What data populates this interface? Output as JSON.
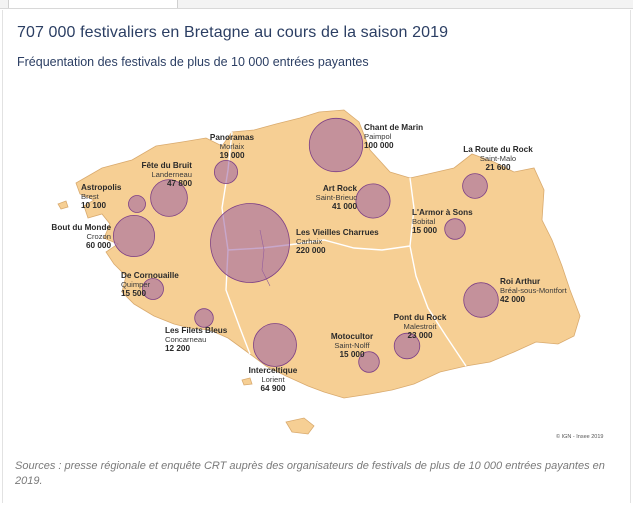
{
  "page": {
    "title": "707 000 festivaliers en Bretagne au cours de la saison 2019",
    "subtitle": "Fréquentation des festivals de plus de 10 000 entrées payantes",
    "source": "Sources : presse régionale et enquête CRT auprès des organisateurs de festivals de plus de 10 000 entrées payantes en 2019.",
    "credit": "© IGN - Insee 2019"
  },
  "colors": {
    "land": "#f6cf94",
    "land_stroke": "#d9aa6e",
    "border": "#ffffff",
    "bubble_fill": "#9b5fa0",
    "bubble_stroke": "#7c3f86",
    "water": "#ffffff",
    "title": "#2b3e63"
  },
  "festivals": [
    {
      "name": "Chant de Marin",
      "town": "Paimpol",
      "attendance": "100 000",
      "value": 100000
    },
    {
      "name": "La Route du Rock",
      "town": "Saint-Malo",
      "attendance": "21 600",
      "value": 21600
    },
    {
      "name": "Panoramas",
      "town": "Morlaix",
      "attendance": "19 000",
      "value": 19000
    },
    {
      "name": "Fête du Bruit",
      "town": "Landerneau",
      "attendance": "47 800",
      "value": 47800
    },
    {
      "name": "Astropolis",
      "town": "Brest",
      "attendance": "10 100",
      "value": 10100
    },
    {
      "name": "Art Rock",
      "town": "Saint-Brieuc",
      "attendance": "41 000",
      "value": 41000
    },
    {
      "name": "Bout du Monde",
      "town": "Crozon",
      "attendance": "60 000",
      "value": 60000
    },
    {
      "name": "Les Vieilles Charrues",
      "town": "Carhaix",
      "attendance": "220 000",
      "value": 220000
    },
    {
      "name": "L'Armor à Sons",
      "town": "Bobital",
      "attendance": "15 000",
      "value": 15000
    },
    {
      "name": "De Cornouaille",
      "town": "Quimper",
      "attendance": "15 500",
      "value": 15500
    },
    {
      "name": "Roi Arthur",
      "town": "Bréal-sous-Montfort",
      "attendance": "42 000",
      "value": 42000
    },
    {
      "name": "Les Filets Bleus",
      "town": "Concarneau",
      "attendance": "12 200",
      "value": 12200
    },
    {
      "name": "Pont du Rock",
      "town": "Malestroit",
      "attendance": "23 000",
      "value": 23000
    },
    {
      "name": "Motocultor",
      "town": "Saint-Nolff",
      "attendance": "15 000",
      "value": 15000
    },
    {
      "name": "Interceltique",
      "town": "Lorient",
      "attendance": "64 900",
      "value": 64900
    }
  ]
}
